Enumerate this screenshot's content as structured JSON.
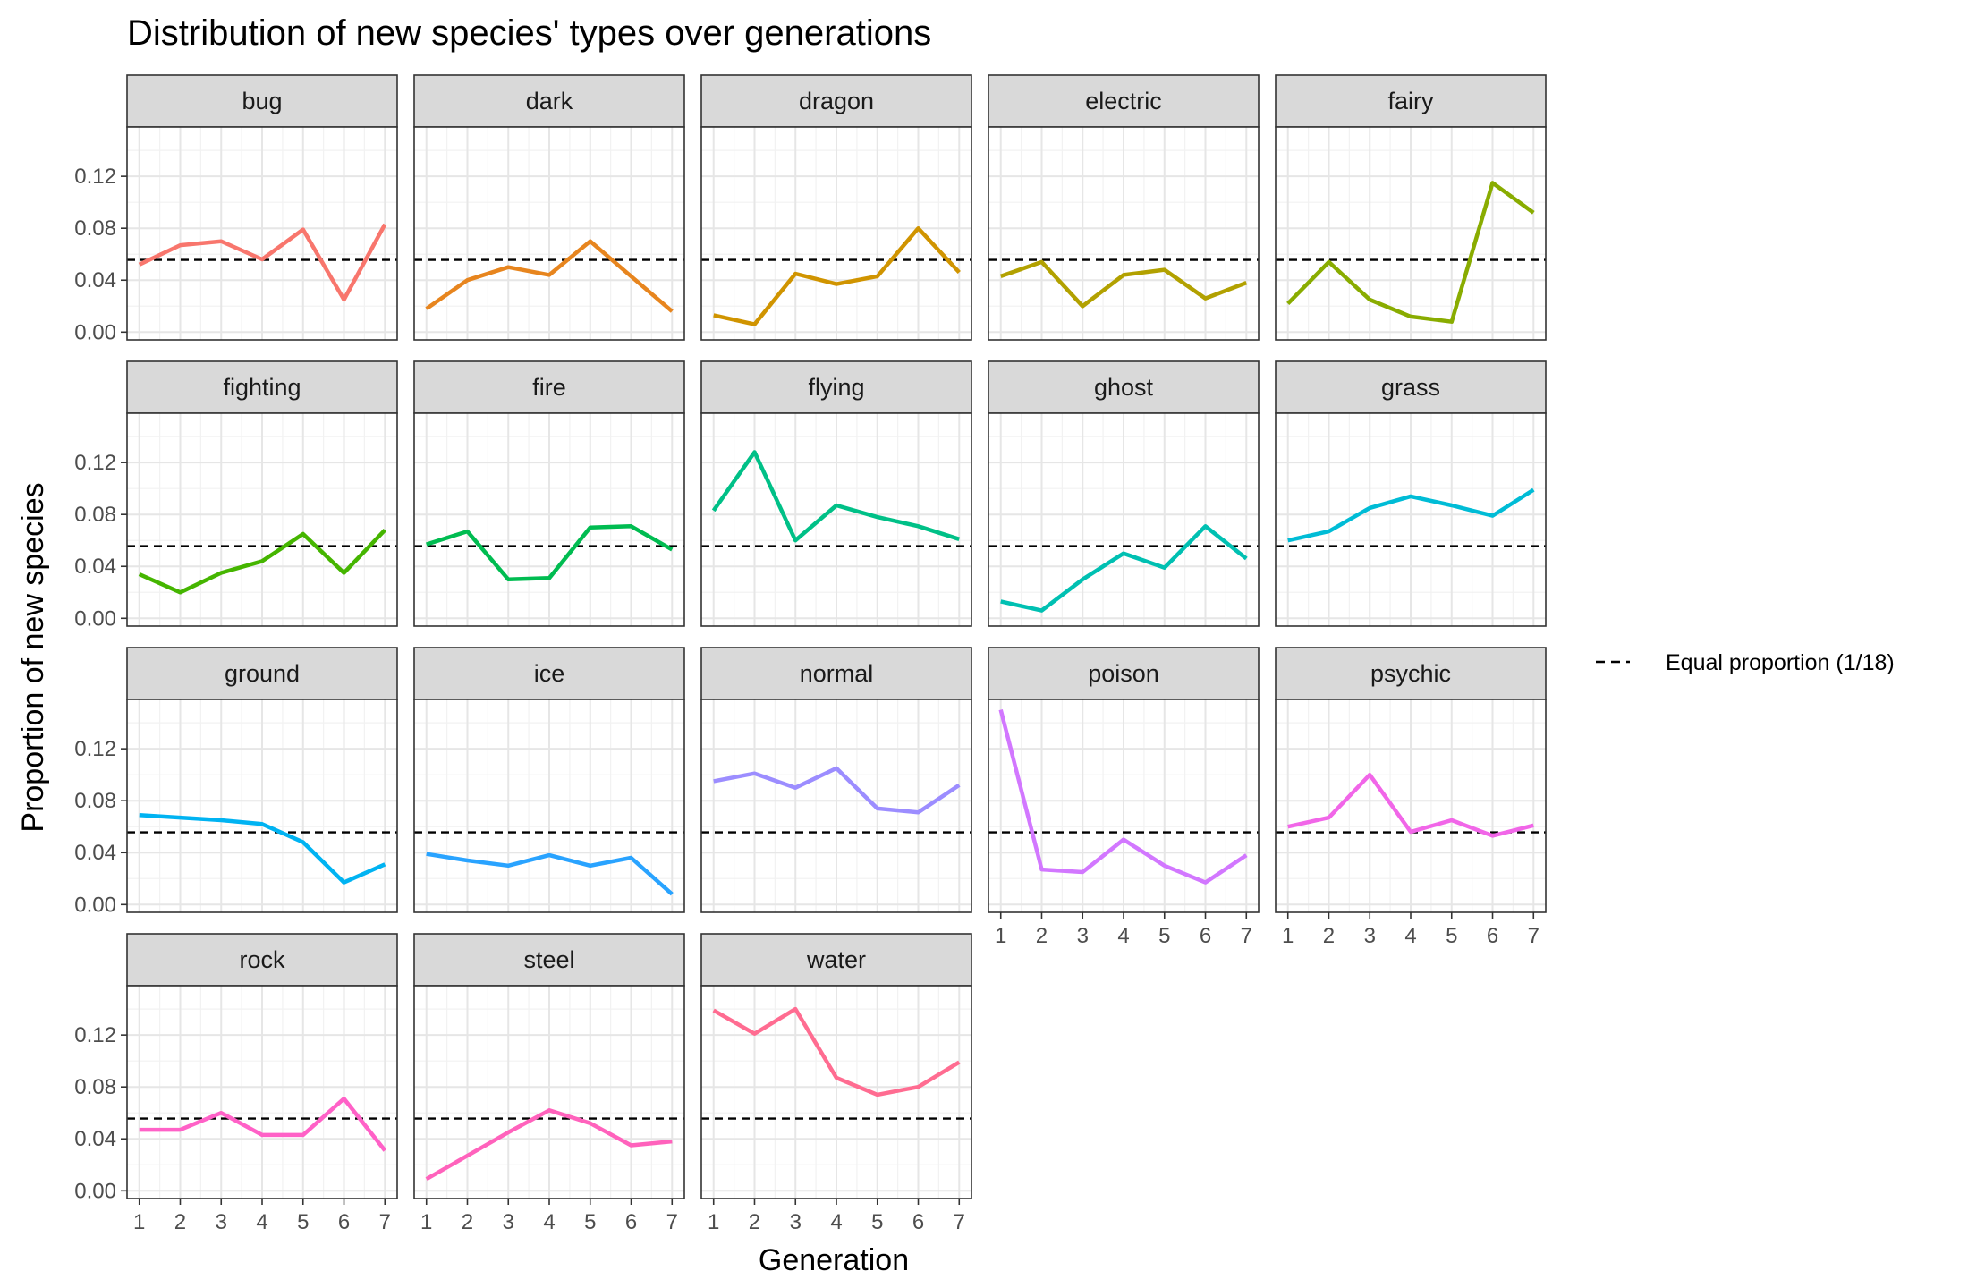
{
  "chart_data": {
    "type": "line",
    "title": "Distribution of new species' types over generations",
    "xlabel": "Generation",
    "ylabel": "Proportion of new species",
    "x": [
      1,
      2,
      3,
      4,
      5,
      6,
      7
    ],
    "x_tick_labels": [
      "1",
      "2",
      "3",
      "4",
      "5",
      "6",
      "7"
    ],
    "y_ticks": [
      0.0,
      0.04,
      0.08,
      0.12
    ],
    "y_tick_labels": [
      "0.00",
      "0.04",
      "0.08",
      "0.12"
    ],
    "ylim": [
      -0.006,
      0.158
    ],
    "xlim": [
      0.7,
      7.3
    ],
    "grid": true,
    "facet_columns": 5,
    "reference_line": {
      "value": 0.0556,
      "label": "Equal proportion (1/18)",
      "style": "dashed"
    },
    "legend_position": "right",
    "series": [
      {
        "name": "bug",
        "color": "#F8766D",
        "values": [
          0.052,
          0.067,
          0.07,
          0.056,
          0.079,
          0.025,
          0.083
        ]
      },
      {
        "name": "dark",
        "color": "#E7851E",
        "values": [
          0.018,
          0.04,
          0.05,
          0.044,
          0.07,
          0.043,
          0.016
        ]
      },
      {
        "name": "dragon",
        "color": "#D09400",
        "values": [
          0.013,
          0.006,
          0.045,
          0.037,
          0.043,
          0.08,
          0.046
        ]
      },
      {
        "name": "electric",
        "color": "#B2A100",
        "values": [
          0.043,
          0.054,
          0.02,
          0.044,
          0.048,
          0.026,
          0.038
        ]
      },
      {
        "name": "fairy",
        "color": "#89AC00",
        "values": [
          0.022,
          0.054,
          0.025,
          0.012,
          0.008,
          0.115,
          0.092
        ]
      },
      {
        "name": "fighting",
        "color": "#45B500",
        "values": [
          0.034,
          0.02,
          0.035,
          0.044,
          0.065,
          0.035,
          0.068
        ]
      },
      {
        "name": "fire",
        "color": "#00BC51",
        "values": [
          0.057,
          0.067,
          0.03,
          0.031,
          0.07,
          0.071,
          0.053
        ]
      },
      {
        "name": "flying",
        "color": "#00C087",
        "values": [
          0.083,
          0.128,
          0.06,
          0.087,
          0.078,
          0.071,
          0.061
        ]
      },
      {
        "name": "ghost",
        "color": "#00C0B2",
        "values": [
          0.013,
          0.006,
          0.03,
          0.05,
          0.039,
          0.071,
          0.046
        ]
      },
      {
        "name": "grass",
        "color": "#00BCD6",
        "values": [
          0.06,
          0.067,
          0.085,
          0.094,
          0.087,
          0.079,
          0.099
        ]
      },
      {
        "name": "ground",
        "color": "#00B3F2",
        "values": [
          0.069,
          0.067,
          0.065,
          0.062,
          0.048,
          0.017,
          0.031
        ]
      },
      {
        "name": "ice",
        "color": "#29A3FF",
        "values": [
          0.039,
          0.034,
          0.03,
          0.038,
          0.03,
          0.036,
          0.008
        ]
      },
      {
        "name": "normal",
        "color": "#9C8DFF",
        "values": [
          0.095,
          0.101,
          0.09,
          0.105,
          0.074,
          0.071,
          0.092
        ]
      },
      {
        "name": "poison",
        "color": "#D277FF",
        "values": [
          0.15,
          0.027,
          0.025,
          0.05,
          0.03,
          0.017,
          0.038
        ]
      },
      {
        "name": "psychic",
        "color": "#F166E8",
        "values": [
          0.06,
          0.067,
          0.1,
          0.056,
          0.065,
          0.053,
          0.061
        ]
      },
      {
        "name": "rock",
        "color": "#FF61C7",
        "values": [
          0.047,
          0.047,
          0.06,
          0.043,
          0.043,
          0.071,
          0.031
        ]
      },
      {
        "name": "steel",
        "color": "#FF62BC",
        "values": [
          0.009,
          0.027,
          0.045,
          0.062,
          0.052,
          0.035,
          0.038
        ]
      },
      {
        "name": "water",
        "color": "#FF6C91",
        "values": [
          0.139,
          0.121,
          0.14,
          0.087,
          0.074,
          0.08,
          0.099
        ]
      }
    ]
  }
}
